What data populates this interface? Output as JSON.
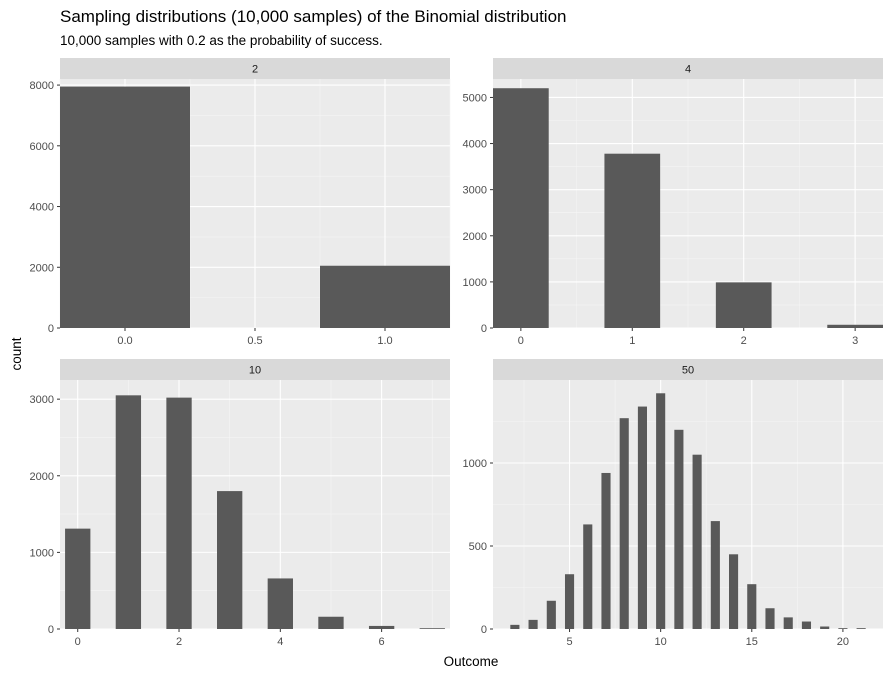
{
  "chart_data": {
    "type": "bar",
    "title": "Sampling distributions (10,000 samples) of the Binomial distribution",
    "subtitle": "10,000 samples with 0.2 as the probability of success.",
    "xlabel": "Outcome",
    "ylabel": "count",
    "grid": true,
    "facets": [
      {
        "strip": "2",
        "bar_width": 0.5,
        "xlim": [
          -0.25,
          1.25
        ],
        "ylim": [
          0,
          8200
        ],
        "xticks": [
          "0.0",
          "0.5",
          "1.0"
        ],
        "xtick_values": [
          0,
          0.5,
          1.0
        ],
        "yticks": [
          "0",
          "2000",
          "4000",
          "6000",
          "8000"
        ],
        "ytick_values": [
          0,
          2000,
          4000,
          6000,
          8000
        ],
        "x": [
          0,
          1
        ],
        "values": [
          7950,
          2050
        ]
      },
      {
        "strip": "4",
        "bar_width": 0.5,
        "xlim": [
          -0.25,
          3.25
        ],
        "ylim": [
          0,
          5400
        ],
        "xticks": [
          "0",
          "1",
          "2",
          "3"
        ],
        "xtick_values": [
          0,
          1,
          2,
          3
        ],
        "yticks": [
          "0",
          "1000",
          "2000",
          "3000",
          "4000",
          "5000"
        ],
        "ytick_values": [
          0,
          1000,
          2000,
          3000,
          4000,
          5000
        ],
        "x": [
          0,
          1,
          2,
          3
        ],
        "values": [
          5200,
          3780,
          990,
          70
        ]
      },
      {
        "strip": "10",
        "bar_width": 0.5,
        "xlim": [
          -0.35,
          7.35
        ],
        "ylim": [
          0,
          3250
        ],
        "xticks": [
          "0",
          "2",
          "4",
          "6"
        ],
        "xtick_values": [
          0,
          2,
          4,
          6
        ],
        "yticks": [
          "0",
          "1000",
          "2000",
          "3000"
        ],
        "ytick_values": [
          0,
          1000,
          2000,
          3000
        ],
        "x": [
          0,
          1,
          2,
          3,
          4,
          5,
          6,
          7
        ],
        "values": [
          1310,
          3050,
          3020,
          1800,
          660,
          160,
          40,
          10
        ]
      },
      {
        "strip": "50",
        "bar_width": 0.5,
        "xlim": [
          0.8,
          22.2
        ],
        "ylim": [
          0,
          1500
        ],
        "xticks": [
          "5",
          "10",
          "15",
          "20"
        ],
        "xtick_values": [
          5,
          10,
          15,
          20
        ],
        "yticks": [
          "0",
          "500",
          "1000"
        ],
        "ytick_values": [
          0,
          500,
          1000
        ],
        "x": [
          2,
          3,
          4,
          5,
          6,
          7,
          8,
          9,
          10,
          11,
          12,
          13,
          14,
          15,
          16,
          17,
          18,
          19,
          20,
          21
        ],
        "values": [
          25,
          55,
          170,
          330,
          630,
          940,
          1270,
          1340,
          1420,
          1200,
          1050,
          650,
          450,
          270,
          125,
          70,
          45,
          15,
          5,
          5
        ]
      }
    ],
    "colors": {
      "bar": "#595959",
      "panel": "#ebebeb",
      "strip": "#d9d9d9",
      "grid_major": "#ffffff",
      "grid_minor": "#f5f5f5"
    }
  }
}
